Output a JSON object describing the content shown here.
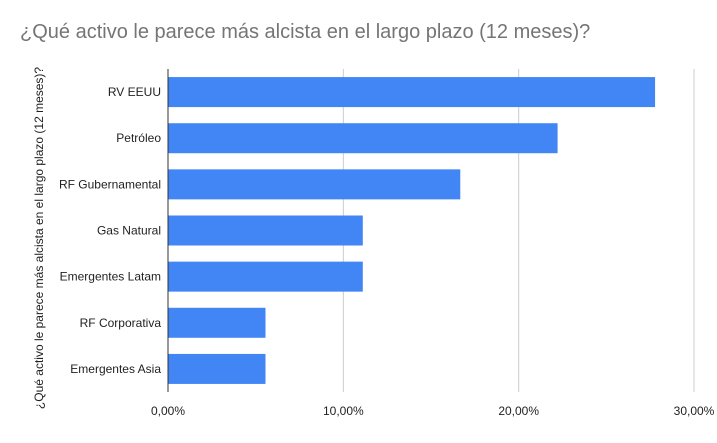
{
  "chart_data": {
    "type": "bar",
    "orientation": "horizontal",
    "title": "¿Qué activo le parece más alcista en el largo plazo (12 meses)?",
    "ylabel": "¿Qué activo le parece más alcista en el largo plazo (12 meses)?",
    "xlabel": "",
    "categories": [
      "RV EEUU",
      "Petróleo",
      "RF Gubernamental",
      "Gas Natural",
      "Emergentes Latam",
      "RF Corporativa",
      "Emergentes Asia"
    ],
    "values": [
      27.78,
      22.22,
      16.67,
      11.11,
      11.11,
      5.56,
      5.56
    ],
    "xlim": [
      0,
      30
    ],
    "x_ticks": [
      0,
      10,
      20,
      30
    ],
    "x_tick_labels": [
      "0,00%",
      "10,00%",
      "20,00%",
      "30,00%"
    ],
    "grid": "vertical",
    "legend": "none",
    "bar_color": "#4285f4",
    "grid_color": "#cccccc",
    "axis_color": "#333333"
  }
}
